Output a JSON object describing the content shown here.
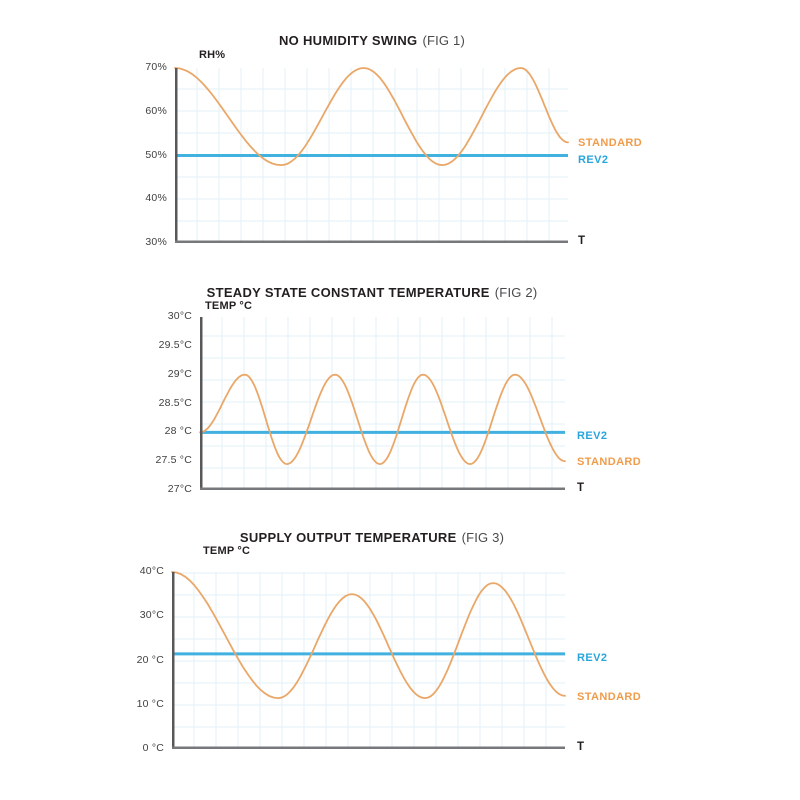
{
  "page": {
    "background": "#ffffff"
  },
  "colors": {
    "standard_label": "#f09c4b",
    "standard_curve": "#eaa768",
    "rev2_label": "#29a5de",
    "rev2_line": "#41b1e0",
    "axis_y": "#58585a",
    "axis_x": "#77787b",
    "grid": "#e2f0fa",
    "title": "#231f20",
    "fig": "#4a4a4c",
    "tick": "#414042"
  },
  "chart_data": [
    {
      "type": "line",
      "title": "NO HUMIDITY SWING",
      "fig_label": "(FIG 1)",
      "ylabel": "RH%",
      "xlabel": "T",
      "ylim": [
        30,
        70
      ],
      "grid": true,
      "legend_position": "right",
      "yticks": [
        {
          "label": "70%",
          "value": 70
        },
        {
          "label": "60%",
          "value": 60
        },
        {
          "label": "50%",
          "value": 50
        },
        {
          "label": "40%",
          "value": 40
        },
        {
          "label": "30%",
          "value": 30
        }
      ],
      "series": [
        {
          "name": "STANDARD",
          "shape": "wave",
          "color_role": "standard",
          "points": [
            [
              0,
              70
            ],
            [
              0.27,
              47.8
            ],
            [
              0.48,
              70
            ],
            [
              0.68,
              47.8
            ],
            [
              0.88,
              70
            ],
            [
              1,
              53
            ]
          ]
        },
        {
          "name": "REV2",
          "shape": "constant",
          "color_role": "rev2",
          "value": 50
        }
      ]
    },
    {
      "type": "line",
      "title": "STEADY STATE CONSTANT TEMPERATURE",
      "fig_label": "(FIG 2)",
      "ylabel": "TEMP °C",
      "xlabel": "T",
      "ylim": [
        27,
        30
      ],
      "grid": true,
      "legend_position": "right",
      "yticks": [
        {
          "label": "30°C",
          "value": 30
        },
        {
          "label": "29.5°C",
          "value": 29.5
        },
        {
          "label": "29°C",
          "value": 29
        },
        {
          "label": "28.5°C",
          "value": 28.5
        },
        {
          "label": "28 °C",
          "value": 28
        },
        {
          "label": "27.5 °C",
          "value": 27.5
        },
        {
          "label": "27°C",
          "value": 27
        }
      ],
      "series": [
        {
          "name": "STANDARD",
          "shape": "wave",
          "color_role": "standard",
          "points": [
            [
              0,
              28
            ],
            [
              0.123,
              29
            ],
            [
              0.238,
              27.45
            ],
            [
              0.37,
              29
            ],
            [
              0.493,
              27.45
            ],
            [
              0.611,
              29
            ],
            [
              0.74,
              27.45
            ],
            [
              0.863,
              29
            ],
            [
              1,
              27.5
            ]
          ]
        },
        {
          "name": "REV2",
          "shape": "constant",
          "color_role": "rev2",
          "value": 28
        }
      ]
    },
    {
      "type": "line",
      "title": "SUPPLY OUTPUT TEMPERATURE",
      "fig_label": "(FIG 3)",
      "ylabel": "TEMP °C",
      "xlabel": "T",
      "ylim": [
        0,
        40
      ],
      "grid": true,
      "legend_position": "right",
      "yticks": [
        {
          "label": "40°C",
          "value": 40
        },
        {
          "label": "30°C",
          "value": 30
        },
        {
          "label": "20 °C",
          "value": 20
        },
        {
          "label": "10 °C",
          "value": 10
        },
        {
          "label": "0 °C",
          "value": 0
        }
      ],
      "series": [
        {
          "name": "STANDARD",
          "shape": "wave",
          "color_role": "standard",
          "points": [
            [
              0,
              40
            ],
            [
              0.27,
              11.5
            ],
            [
              0.458,
              35
            ],
            [
              0.644,
              11.5
            ],
            [
              0.817,
              37.5
            ],
            [
              1,
              12
            ]
          ]
        },
        {
          "name": "REV2",
          "shape": "constant",
          "color_role": "rev2",
          "value": 21.5
        }
      ]
    }
  ]
}
